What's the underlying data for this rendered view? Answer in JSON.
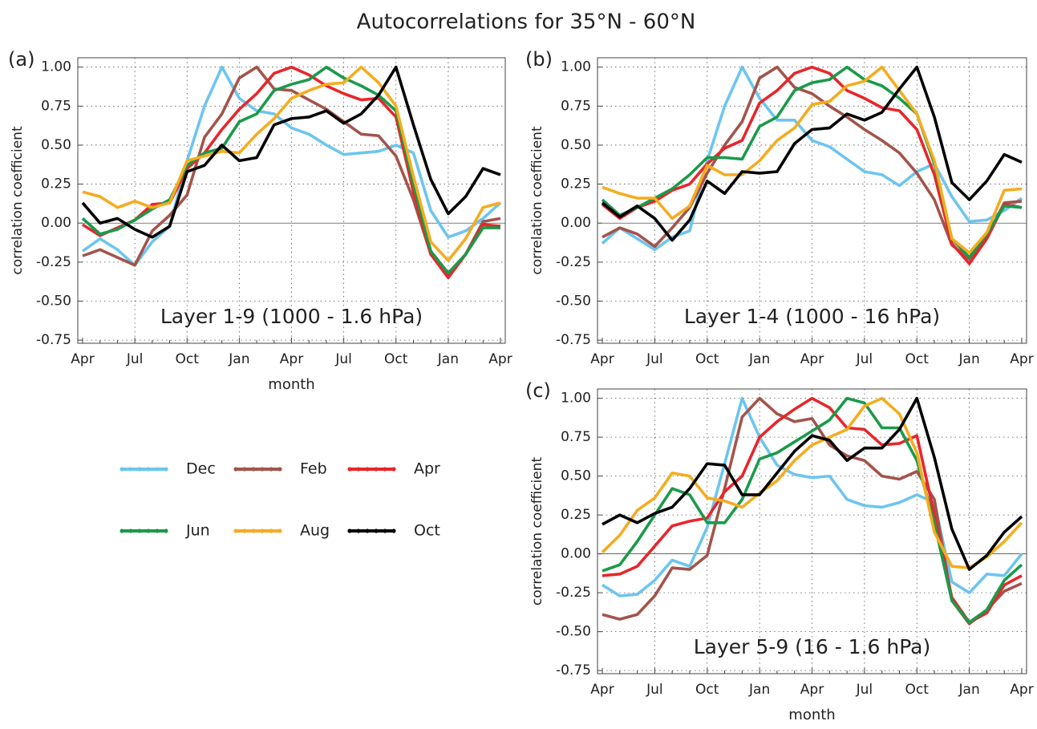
{
  "title": "Autocorrelations for 35°N - 60°N",
  "chart_data": [
    {
      "type": "line",
      "panel_label": "(a)",
      "annotation": "Layer 1-9  (1000 - 1.6 hPa)",
      "ylabel": "correlation coefficient",
      "xlabel": "month",
      "categories": [
        "Apr",
        null,
        null,
        "Jul",
        null,
        null,
        "Oct",
        null,
        null,
        "Jan",
        null,
        null,
        "Apr",
        null,
        null,
        "Jul",
        null,
        null,
        "Oct",
        null,
        null,
        "Jan",
        null,
        null,
        "Apr"
      ],
      "ylim": [
        -0.77,
        1.06
      ],
      "yticks": [
        {
          "value": -0.75,
          "label": "-0.75"
        },
        {
          "value": -0.5,
          "label": "-0.50"
        },
        {
          "value": -0.25,
          "label": "-0.25"
        },
        {
          "value": 0,
          "label": "0.00"
        },
        {
          "value": 0.25,
          "label": "0.25"
        },
        {
          "value": 0.5,
          "label": "0.50"
        },
        {
          "value": 0.75,
          "label": "0.75"
        },
        {
          "value": 1,
          "label": "1.00"
        }
      ],
      "grid": true,
      "series": [
        {
          "name": "Dec",
          "color": "#6cc5ef",
          "values": [
            -0.18,
            -0.1,
            -0.17,
            -0.27,
            -0.12,
            -0.02,
            0.4,
            0.75,
            1.0,
            0.8,
            0.72,
            0.7,
            0.61,
            0.57,
            0.5,
            0.44,
            0.45,
            0.46,
            0.5,
            0.45,
            0.08,
            -0.09,
            -0.05,
            0.03,
            0.13
          ]
        },
        {
          "name": "Feb",
          "color": "#a3544b",
          "values": [
            -0.21,
            -0.17,
            -0.22,
            -0.27,
            -0.05,
            0.05,
            0.18,
            0.55,
            0.7,
            0.93,
            1.0,
            0.86,
            0.85,
            0.79,
            0.73,
            0.65,
            0.57,
            0.56,
            0.43,
            0.15,
            -0.2,
            -0.33,
            -0.2,
            0.01,
            0.03
          ]
        },
        {
          "name": "Apr",
          "color": "#e8262b",
          "values": [
            -0.01,
            -0.08,
            -0.03,
            0.02,
            0.12,
            0.13,
            0.35,
            0.45,
            0.6,
            0.73,
            0.83,
            0.96,
            1.0,
            0.95,
            0.88,
            0.83,
            0.79,
            0.8,
            0.68,
            0.2,
            -0.2,
            -0.35,
            -0.2,
            -0.01,
            -0.02
          ]
        },
        {
          "name": "Jun",
          "color": "#1a9a4a",
          "values": [
            0.03,
            -0.07,
            -0.04,
            0.02,
            0.09,
            0.15,
            0.37,
            0.45,
            0.48,
            0.65,
            0.7,
            0.85,
            0.89,
            0.92,
            1.0,
            0.93,
            0.88,
            0.82,
            0.72,
            0.25,
            -0.18,
            -0.32,
            -0.2,
            -0.03,
            -0.03
          ]
        },
        {
          "name": "Aug",
          "color": "#f5ac1e",
          "values": [
            0.2,
            0.17,
            0.1,
            0.14,
            0.1,
            0.13,
            0.4,
            0.43,
            0.46,
            0.45,
            0.57,
            0.67,
            0.8,
            0.85,
            0.89,
            0.9,
            1.0,
            0.9,
            0.75,
            0.3,
            -0.12,
            -0.24,
            -0.1,
            0.1,
            0.13
          ]
        },
        {
          "name": "Oct",
          "color": "#000000",
          "values": [
            0.13,
            0.0,
            0.03,
            -0.04,
            -0.09,
            -0.02,
            0.33,
            0.37,
            0.5,
            0.4,
            0.42,
            0.63,
            0.67,
            0.68,
            0.72,
            0.64,
            0.7,
            0.82,
            1.0,
            0.63,
            0.28,
            0.06,
            0.17,
            0.35,
            0.31
          ]
        }
      ]
    },
    {
      "type": "line",
      "panel_label": "(b)",
      "annotation": "Layer 1-4  (1000 - 16 hPa)",
      "ylabel": "correlation coefficient",
      "categories": [
        "Apr",
        null,
        null,
        "Jul",
        null,
        null,
        "Oct",
        null,
        null,
        "Jan",
        null,
        null,
        "Apr",
        null,
        null,
        "Jul",
        null,
        null,
        "Oct",
        null,
        null,
        "Jan",
        null,
        null,
        "Apr"
      ],
      "ylim": [
        -0.77,
        1.06
      ],
      "yticks": [
        {
          "value": -0.75,
          "label": "-0.75"
        },
        {
          "value": -0.5,
          "label": "-0.50"
        },
        {
          "value": -0.25,
          "label": "-0.25"
        },
        {
          "value": 0,
          "label": "0.00"
        },
        {
          "value": 0.25,
          "label": "0.25"
        },
        {
          "value": 0.5,
          "label": "0.50"
        },
        {
          "value": 0.75,
          "label": "0.75"
        },
        {
          "value": 1,
          "label": "1.00"
        }
      ],
      "grid": true,
      "series": [
        {
          "name": "Dec",
          "color": "#6cc5ef",
          "values": [
            -0.13,
            -0.03,
            -0.1,
            -0.17,
            -0.09,
            -0.05,
            0.4,
            0.75,
            1.0,
            0.8,
            0.66,
            0.66,
            0.53,
            0.49,
            0.41,
            0.33,
            0.31,
            0.24,
            0.33,
            0.38,
            0.17,
            0.01,
            0.02,
            0.08,
            0.16
          ]
        },
        {
          "name": "Feb",
          "color": "#a3544b",
          "values": [
            -0.09,
            -0.03,
            -0.07,
            -0.15,
            -0.03,
            0.1,
            0.32,
            0.5,
            0.65,
            0.93,
            1.0,
            0.87,
            0.83,
            0.75,
            0.68,
            0.6,
            0.53,
            0.45,
            0.32,
            0.15,
            -0.14,
            -0.23,
            -0.09,
            0.13,
            0.14
          ]
        },
        {
          "name": "Apr",
          "color": "#e8262b",
          "values": [
            0.12,
            0.03,
            0.1,
            0.14,
            0.21,
            0.25,
            0.38,
            0.48,
            0.53,
            0.77,
            0.85,
            0.96,
            1.0,
            0.96,
            0.85,
            0.8,
            0.74,
            0.72,
            0.6,
            0.31,
            -0.13,
            -0.26,
            -0.1,
            0.12,
            0.1
          ]
        },
        {
          "name": "Jun",
          "color": "#1a9a4a",
          "values": [
            0.15,
            0.05,
            0.1,
            0.16,
            0.22,
            0.31,
            0.42,
            0.42,
            0.41,
            0.62,
            0.68,
            0.85,
            0.9,
            0.92,
            1.0,
            0.92,
            0.88,
            0.8,
            0.7,
            0.38,
            -0.1,
            -0.22,
            -0.07,
            0.11,
            0.1
          ]
        },
        {
          "name": "Aug",
          "color": "#f5ac1e",
          "values": [
            0.23,
            0.19,
            0.16,
            0.16,
            0.03,
            0.11,
            0.37,
            0.31,
            0.31,
            0.4,
            0.53,
            0.61,
            0.76,
            0.78,
            0.88,
            0.91,
            1.0,
            0.85,
            0.7,
            0.4,
            -0.1,
            -0.19,
            -0.06,
            0.21,
            0.22
          ]
        },
        {
          "name": "Oct",
          "color": "#000000",
          "values": [
            0.13,
            0.04,
            0.11,
            0.03,
            -0.11,
            0.02,
            0.27,
            0.19,
            0.33,
            0.32,
            0.33,
            0.51,
            0.6,
            0.61,
            0.7,
            0.66,
            0.71,
            0.86,
            1.0,
            0.68,
            0.26,
            0.15,
            0.27,
            0.44,
            0.39
          ]
        }
      ]
    },
    {
      "type": "line",
      "panel_label": "(c)",
      "annotation": "Layer 5-9  (16 - 1.6 hPa)",
      "ylabel": "correlation coefficient",
      "xlabel": "month",
      "categories": [
        "Apr",
        null,
        null,
        "Jul",
        null,
        null,
        "Oct",
        null,
        null,
        "Jan",
        null,
        null,
        "Apr",
        null,
        null,
        "Jul",
        null,
        null,
        "Oct",
        null,
        null,
        "Jan",
        null,
        null,
        "Apr"
      ],
      "ylim": [
        -0.77,
        1.06
      ],
      "yticks": [
        {
          "value": -0.75,
          "label": "-0.75"
        },
        {
          "value": -0.5,
          "label": "-0.50"
        },
        {
          "value": -0.25,
          "label": "-0.25"
        },
        {
          "value": 0,
          "label": "0.00"
        },
        {
          "value": 0.25,
          "label": "0.25"
        },
        {
          "value": 0.5,
          "label": "0.50"
        },
        {
          "value": 0.75,
          "label": "0.75"
        },
        {
          "value": 1,
          "label": "1.00"
        }
      ],
      "grid": true,
      "series": [
        {
          "name": "Dec",
          "color": "#6cc5ef",
          "values": [
            -0.2,
            -0.27,
            -0.26,
            -0.17,
            -0.04,
            -0.08,
            0.17,
            0.58,
            1.0,
            0.75,
            0.57,
            0.51,
            0.49,
            0.5,
            0.35,
            0.31,
            0.3,
            0.33,
            0.38,
            0.33,
            -0.18,
            -0.25,
            -0.13,
            -0.14,
            0.0
          ]
        },
        {
          "name": "Feb",
          "color": "#a3544b",
          "values": [
            -0.39,
            -0.42,
            -0.39,
            -0.27,
            -0.09,
            -0.1,
            -0.01,
            0.42,
            0.88,
            1.0,
            0.9,
            0.85,
            0.87,
            0.7,
            0.63,
            0.6,
            0.5,
            0.48,
            0.53,
            0.35,
            -0.3,
            -0.45,
            -0.36,
            -0.24,
            -0.19
          ]
        },
        {
          "name": "Apr",
          "color": "#e8262b",
          "values": [
            -0.14,
            -0.13,
            -0.08,
            0.05,
            0.18,
            0.21,
            0.23,
            0.4,
            0.5,
            0.75,
            0.85,
            0.93,
            1.0,
            0.94,
            0.81,
            0.8,
            0.7,
            0.71,
            0.76,
            0.25,
            -0.28,
            -0.44,
            -0.38,
            -0.2,
            -0.14
          ]
        },
        {
          "name": "Jun",
          "color": "#1a9a4a",
          "values": [
            -0.11,
            -0.07,
            0.08,
            0.25,
            0.42,
            0.38,
            0.2,
            0.2,
            0.35,
            0.61,
            0.65,
            0.72,
            0.79,
            0.86,
            1.0,
            0.97,
            0.81,
            0.81,
            0.6,
            0.2,
            -0.3,
            -0.44,
            -0.36,
            -0.17,
            -0.07
          ]
        },
        {
          "name": "Aug",
          "color": "#f5ac1e",
          "values": [
            0.01,
            0.12,
            0.28,
            0.36,
            0.52,
            0.5,
            0.36,
            0.34,
            0.3,
            0.39,
            0.47,
            0.6,
            0.7,
            0.75,
            0.8,
            0.95,
            1.0,
            0.9,
            0.65,
            0.14,
            -0.08,
            -0.09,
            -0.02,
            0.08,
            0.2
          ]
        },
        {
          "name": "Oct",
          "color": "#000000",
          "values": [
            0.19,
            0.25,
            0.2,
            0.26,
            0.3,
            0.42,
            0.58,
            0.57,
            0.38,
            0.38,
            0.52,
            0.66,
            0.76,
            0.73,
            0.6,
            0.68,
            0.68,
            0.8,
            1.0,
            0.62,
            0.16,
            -0.1,
            -0.01,
            0.14,
            0.24
          ]
        }
      ]
    }
  ]
}
